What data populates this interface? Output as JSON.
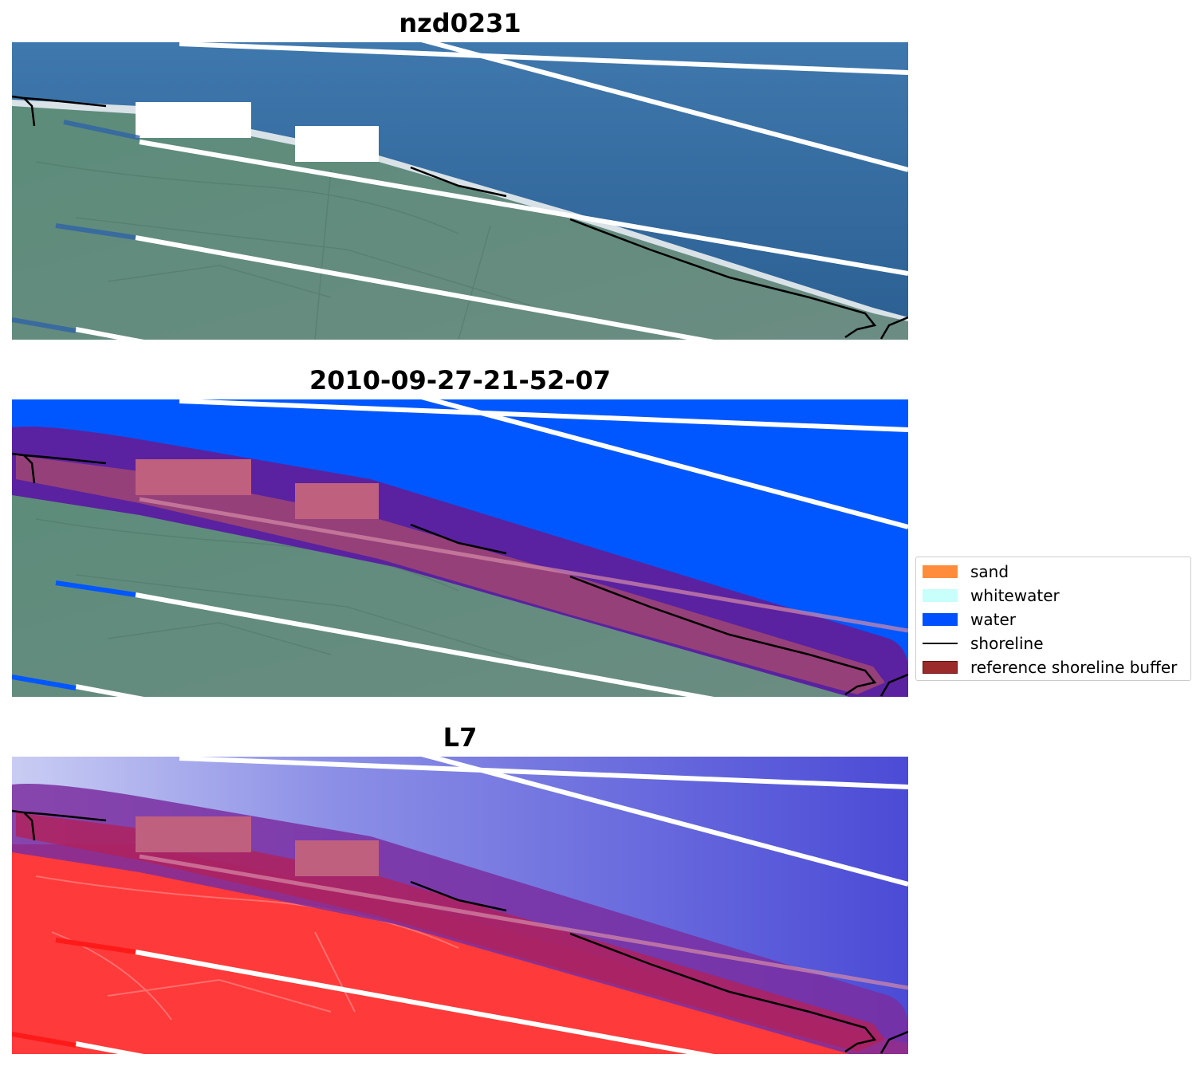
{
  "panels": [
    {
      "title": "nzd0231",
      "kind": "rgb"
    },
    {
      "title": "2010-09-27-21-52-07",
      "kind": "classified"
    },
    {
      "title": "L7",
      "kind": "index"
    }
  ],
  "legend": {
    "items": [
      {
        "label": "sand",
        "type": "patch",
        "color": "#ff8c3c"
      },
      {
        "label": "whitewater",
        "type": "patch",
        "color": "#c8fffa"
      },
      {
        "label": "water",
        "type": "patch",
        "color": "#0050ff"
      },
      {
        "label": "shoreline",
        "type": "line",
        "color": "#000000"
      },
      {
        "label": "reference shoreline buffer",
        "type": "patch",
        "color": "#9b2a2a"
      }
    ]
  },
  "colors": {
    "ocean": "#2d6fa3",
    "land": "#5f8a78",
    "water_class": "#0057ff",
    "buffer_purple": "#5a22a0",
    "buffer_pink": "#c0607f",
    "index_land": "#ff3a3a",
    "index_water": "#4848d8",
    "scanline_gap": "#ffffff"
  }
}
